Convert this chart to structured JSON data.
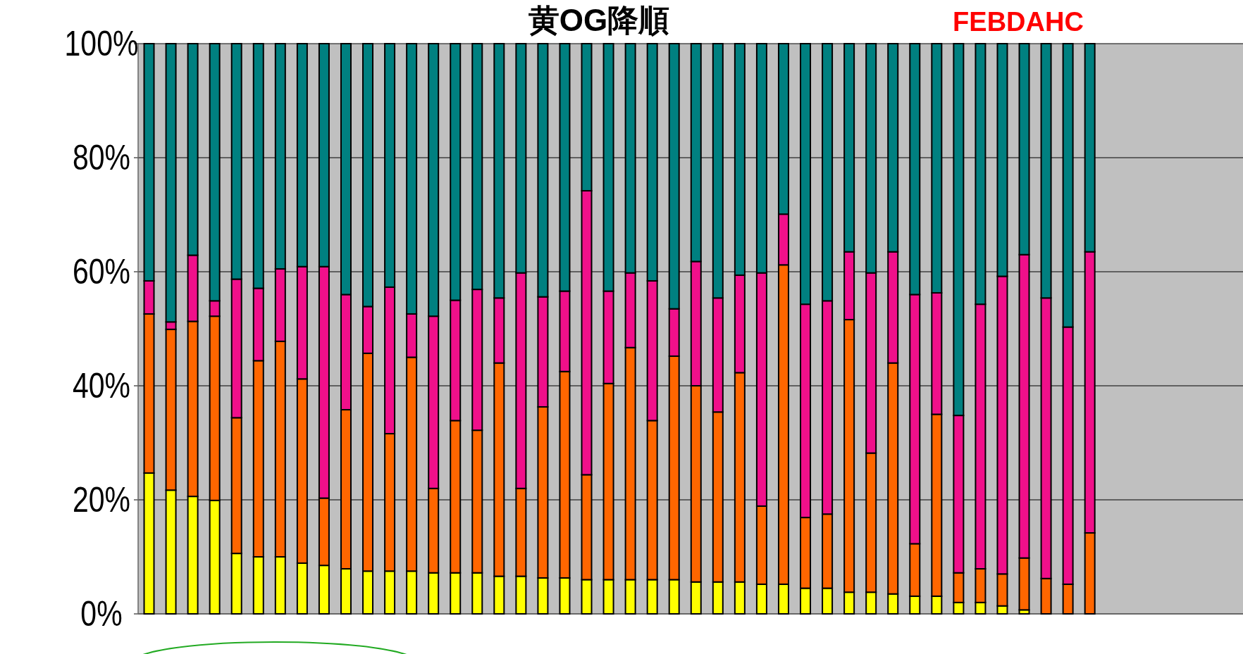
{
  "chart_data": {
    "type": "bar",
    "stacked": true,
    "title": "黄OG降順",
    "annotations": [
      "FEBDAHC"
    ],
    "grid": "y",
    "categories": [
      null,
      null,
      null,
      null,
      null,
      null,
      null,
      null,
      null,
      null,
      null,
      null,
      null,
      null,
      null,
      null,
      null,
      null,
      null,
      null,
      null,
      null,
      null,
      null,
      null,
      null,
      null,
      null,
      null,
      null,
      null,
      null,
      null,
      null,
      null,
      null,
      null,
      null,
      null,
      null,
      null,
      null,
      null,
      null,
      null,
      null,
      null,
      null,
      null,
      null,
      null
    ],
    "ylim": [
      0,
      100
    ],
    "yticks": [
      {
        "value": 0,
        "label": "0%"
      },
      {
        "value": 20,
        "label": "20%"
      },
      {
        "value": 40,
        "label": "40%"
      },
      {
        "value": 60,
        "label": "60%"
      },
      {
        "value": 80,
        "label": "80%"
      },
      {
        "value": 100,
        "label": "100%"
      }
    ],
    "series": [
      {
        "color": "#ffff00",
        "values": [
          24.7,
          21.7,
          20.6,
          19.9,
          10.6,
          10.0,
          10.0,
          8.9,
          8.5,
          7.9,
          7.5,
          7.5,
          7.5,
          7.2,
          7.2,
          7.2,
          6.6,
          6.6,
          6.3,
          6.3,
          6.0,
          6.0,
          6.0,
          6.0,
          6.0,
          5.6,
          5.6,
          5.6,
          5.2,
          5.2,
          4.5,
          4.5,
          3.8,
          3.8,
          3.5,
          3.1,
          3.1,
          2.0,
          2.0,
          1.4,
          0.7,
          0,
          0,
          0,
          null,
          null,
          null,
          null,
          null,
          null,
          null
        ]
      },
      {
        "color": "#ff6600",
        "values": [
          27.9,
          28.2,
          30.7,
          32.3,
          23.8,
          34.4,
          37.8,
          32.3,
          11.8,
          27.9,
          38.2,
          24.1,
          37.5,
          14.8,
          26.7,
          25.0,
          37.4,
          15.4,
          30.0,
          36.2,
          18.4,
          34.4,
          40.7,
          27.9,
          39.2,
          34.4,
          29.8,
          36.7,
          13.7,
          56.0,
          12.4,
          13.0,
          47.8,
          24.4,
          40.5,
          9.2,
          31.9,
          5.2,
          5.9,
          5.6,
          9.1,
          6.2,
          5.2,
          14.2,
          null,
          null,
          null,
          null,
          null,
          null,
          null
        ]
      },
      {
        "color": "#f0108a",
        "values": [
          5.8,
          1.3,
          11.6,
          2.7,
          24.3,
          12.7,
          12.7,
          19.7,
          40.6,
          20.2,
          8.2,
          25.7,
          7.6,
          30.2,
          21.1,
          24.7,
          11.4,
          37.8,
          19.3,
          14.1,
          49.8,
          16.2,
          13.1,
          24.5,
          8.3,
          21.8,
          20.0,
          17.1,
          40.9,
          8.9,
          37.4,
          37.4,
          11.9,
          31.6,
          19.5,
          43.7,
          21.3,
          27.6,
          46.4,
          52.2,
          53.2,
          49.2,
          45.1,
          49.3,
          null,
          null,
          null,
          null,
          null,
          null,
          null
        ]
      },
      {
        "color": "#008080",
        "values": [
          41.6,
          48.8,
          37.1,
          45.1,
          41.3,
          42.9,
          39.5,
          39.1,
          39.1,
          44.0,
          46.1,
          42.7,
          47.4,
          47.8,
          45.0,
          43.1,
          44.6,
          40.2,
          44.4,
          43.4,
          25.8,
          43.4,
          40.2,
          41.6,
          46.5,
          38.2,
          44.6,
          40.6,
          40.2,
          29.9,
          45.7,
          45.1,
          36.5,
          40.2,
          36.5,
          44.0,
          43.7,
          65.2,
          45.7,
          40.8,
          37.0,
          44.6,
          49.7,
          36.5,
          null,
          null,
          null,
          null,
          null,
          null,
          null
        ]
      }
    ]
  }
}
